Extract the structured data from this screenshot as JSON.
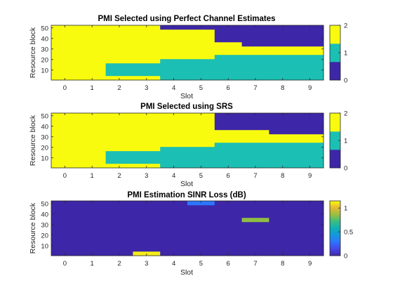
{
  "chart_data": [
    {
      "type": "heatmap",
      "title": "PMI Selected using Perfect Channel Estimates",
      "xlabel": "Slot",
      "ylabel": "Resource block",
      "x_ticks": [
        0,
        1,
        2,
        3,
        4,
        5,
        6,
        7,
        8,
        9
      ],
      "y_ticks": [
        10,
        20,
        30,
        40,
        50
      ],
      "xlim": [
        -0.5,
        9.5
      ],
      "ylim": [
        0.5,
        52.5
      ],
      "clim": [
        0,
        2
      ],
      "colorbar_ticks": [
        0,
        1,
        2
      ],
      "colormap": "discrete",
      "colors": [
        "#3e26a8",
        "#1cbfb3",
        "#f9fb0e"
      ],
      "columns": [
        {
          "slot": 0,
          "segments": [
            {
              "from": 1,
              "to": 52,
              "value": 2
            }
          ]
        },
        {
          "slot": 1,
          "segments": [
            {
              "from": 1,
              "to": 52,
              "value": 2
            }
          ]
        },
        {
          "slot": 2,
          "segments": [
            {
              "from": 1,
              "to": 4,
              "value": 2
            },
            {
              "from": 5,
              "to": 16,
              "value": 1
            },
            {
              "from": 17,
              "to": 52,
              "value": 2
            }
          ]
        },
        {
          "slot": 3,
          "segments": [
            {
              "from": 1,
              "to": 4,
              "value": 2
            },
            {
              "from": 5,
              "to": 16,
              "value": 1
            },
            {
              "from": 17,
              "to": 52,
              "value": 2
            }
          ]
        },
        {
          "slot": 4,
          "segments": [
            {
              "from": 1,
              "to": 20,
              "value": 1
            },
            {
              "from": 21,
              "to": 48,
              "value": 2
            },
            {
              "from": 49,
              "to": 52,
              "value": 0
            }
          ]
        },
        {
          "slot": 5,
          "segments": [
            {
              "from": 1,
              "to": 20,
              "value": 1
            },
            {
              "from": 21,
              "to": 48,
              "value": 2
            },
            {
              "from": 49,
              "to": 52,
              "value": 0
            }
          ]
        },
        {
          "slot": 6,
          "segments": [
            {
              "from": 1,
              "to": 24,
              "value": 1
            },
            {
              "from": 25,
              "to": 36,
              "value": 2
            },
            {
              "from": 37,
              "to": 52,
              "value": 0
            }
          ]
        },
        {
          "slot": 7,
          "segments": [
            {
              "from": 1,
              "to": 24,
              "value": 1
            },
            {
              "from": 25,
              "to": 32,
              "value": 2
            },
            {
              "from": 33,
              "to": 52,
              "value": 0
            }
          ]
        },
        {
          "slot": 8,
          "segments": [
            {
              "from": 1,
              "to": 24,
              "value": 1
            },
            {
              "from": 25,
              "to": 32,
              "value": 2
            },
            {
              "from": 33,
              "to": 52,
              "value": 0
            }
          ]
        },
        {
          "slot": 9,
          "segments": [
            {
              "from": 1,
              "to": 24,
              "value": 1
            },
            {
              "from": 25,
              "to": 32,
              "value": 2
            },
            {
              "from": 33,
              "to": 52,
              "value": 0
            }
          ]
        }
      ]
    },
    {
      "type": "heatmap",
      "title": "PMI Selected using SRS",
      "xlabel": "Slot",
      "ylabel": "Resource block",
      "x_ticks": [
        0,
        1,
        2,
        3,
        4,
        5,
        6,
        7,
        8,
        9
      ],
      "y_ticks": [
        10,
        20,
        30,
        40,
        50
      ],
      "xlim": [
        -0.5,
        9.5
      ],
      "ylim": [
        0.5,
        52.5
      ],
      "clim": [
        0,
        2
      ],
      "colorbar_ticks": [
        0,
        1,
        2
      ],
      "colormap": "discrete",
      "colors": [
        "#3e26a8",
        "#1cbfb3",
        "#f9fb0e"
      ],
      "columns": [
        {
          "slot": 0,
          "segments": [
            {
              "from": 1,
              "to": 52,
              "value": 2
            }
          ]
        },
        {
          "slot": 1,
          "segments": [
            {
              "from": 1,
              "to": 52,
              "value": 2
            }
          ]
        },
        {
          "slot": 2,
          "segments": [
            {
              "from": 1,
              "to": 4,
              "value": 2
            },
            {
              "from": 5,
              "to": 16,
              "value": 1
            },
            {
              "from": 17,
              "to": 52,
              "value": 2
            }
          ]
        },
        {
          "slot": 3,
          "segments": [
            {
              "from": 1,
              "to": 4,
              "value": 2
            },
            {
              "from": 5,
              "to": 16,
              "value": 1
            },
            {
              "from": 17,
              "to": 52,
              "value": 2
            }
          ]
        },
        {
          "slot": 4,
          "segments": [
            {
              "from": 1,
              "to": 20,
              "value": 1
            },
            {
              "from": 21,
              "to": 52,
              "value": 2
            }
          ]
        },
        {
          "slot": 5,
          "segments": [
            {
              "from": 1,
              "to": 20,
              "value": 1
            },
            {
              "from": 21,
              "to": 52,
              "value": 2
            }
          ]
        },
        {
          "slot": 6,
          "segments": [
            {
              "from": 1,
              "to": 24,
              "value": 1
            },
            {
              "from": 25,
              "to": 36,
              "value": 2
            },
            {
              "from": 37,
              "to": 52,
              "value": 0
            }
          ]
        },
        {
          "slot": 7,
          "segments": [
            {
              "from": 1,
              "to": 24,
              "value": 1
            },
            {
              "from": 25,
              "to": 36,
              "value": 2
            },
            {
              "from": 37,
              "to": 52,
              "value": 0
            }
          ]
        },
        {
          "slot": 8,
          "segments": [
            {
              "from": 1,
              "to": 24,
              "value": 1
            },
            {
              "from": 25,
              "to": 32,
              "value": 2
            },
            {
              "from": 33,
              "to": 52,
              "value": 0
            }
          ]
        },
        {
          "slot": 9,
          "segments": [
            {
              "from": 1,
              "to": 24,
              "value": 1
            },
            {
              "from": 25,
              "to": 32,
              "value": 2
            },
            {
              "from": 33,
              "to": 52,
              "value": 0
            }
          ]
        }
      ]
    },
    {
      "type": "heatmap",
      "title": "PMI Estimation SINR Loss (dB)",
      "xlabel": "Slot",
      "ylabel": "Resource block",
      "x_ticks": [
        0,
        1,
        2,
        3,
        4,
        5,
        6,
        7,
        8,
        9
      ],
      "y_ticks": [
        10,
        20,
        30,
        40,
        50
      ],
      "xlim": [
        -0.5,
        9.5
      ],
      "ylim": [
        0.5,
        52.5
      ],
      "clim": [
        0,
        1.15
      ],
      "colorbar_ticks": [
        0,
        0.5,
        1
      ],
      "colormap": "parula",
      "columns": [
        {
          "slot": 0,
          "segments": [
            {
              "from": 1,
              "to": 52,
              "value": 0
            }
          ]
        },
        {
          "slot": 1,
          "segments": [
            {
              "from": 1,
              "to": 52,
              "value": 0
            }
          ]
        },
        {
          "slot": 2,
          "segments": [
            {
              "from": 1,
              "to": 52,
              "value": 0
            }
          ]
        },
        {
          "slot": 3,
          "segments": [
            {
              "from": 1,
              "to": 4,
              "value": 1.12
            },
            {
              "from": 5,
              "to": 52,
              "value": 0
            }
          ]
        },
        {
          "slot": 4,
          "segments": [
            {
              "from": 1,
              "to": 52,
              "value": 0
            }
          ]
        },
        {
          "slot": 5,
          "segments": [
            {
              "from": 1,
              "to": 48,
              "value": 0
            },
            {
              "from": 49,
              "to": 52,
              "value": 0.3
            }
          ]
        },
        {
          "slot": 6,
          "segments": [
            {
              "from": 1,
              "to": 52,
              "value": 0
            }
          ]
        },
        {
          "slot": 7,
          "segments": [
            {
              "from": 1,
              "to": 32,
              "value": 0
            },
            {
              "from": 33,
              "to": 36,
              "value": 0.85
            },
            {
              "from": 37,
              "to": 52,
              "value": 0
            }
          ]
        },
        {
          "slot": 8,
          "segments": [
            {
              "from": 1,
              "to": 52,
              "value": 0
            }
          ]
        },
        {
          "slot": 9,
          "segments": [
            {
              "from": 1,
              "to": 52,
              "value": 0
            }
          ]
        }
      ]
    }
  ]
}
